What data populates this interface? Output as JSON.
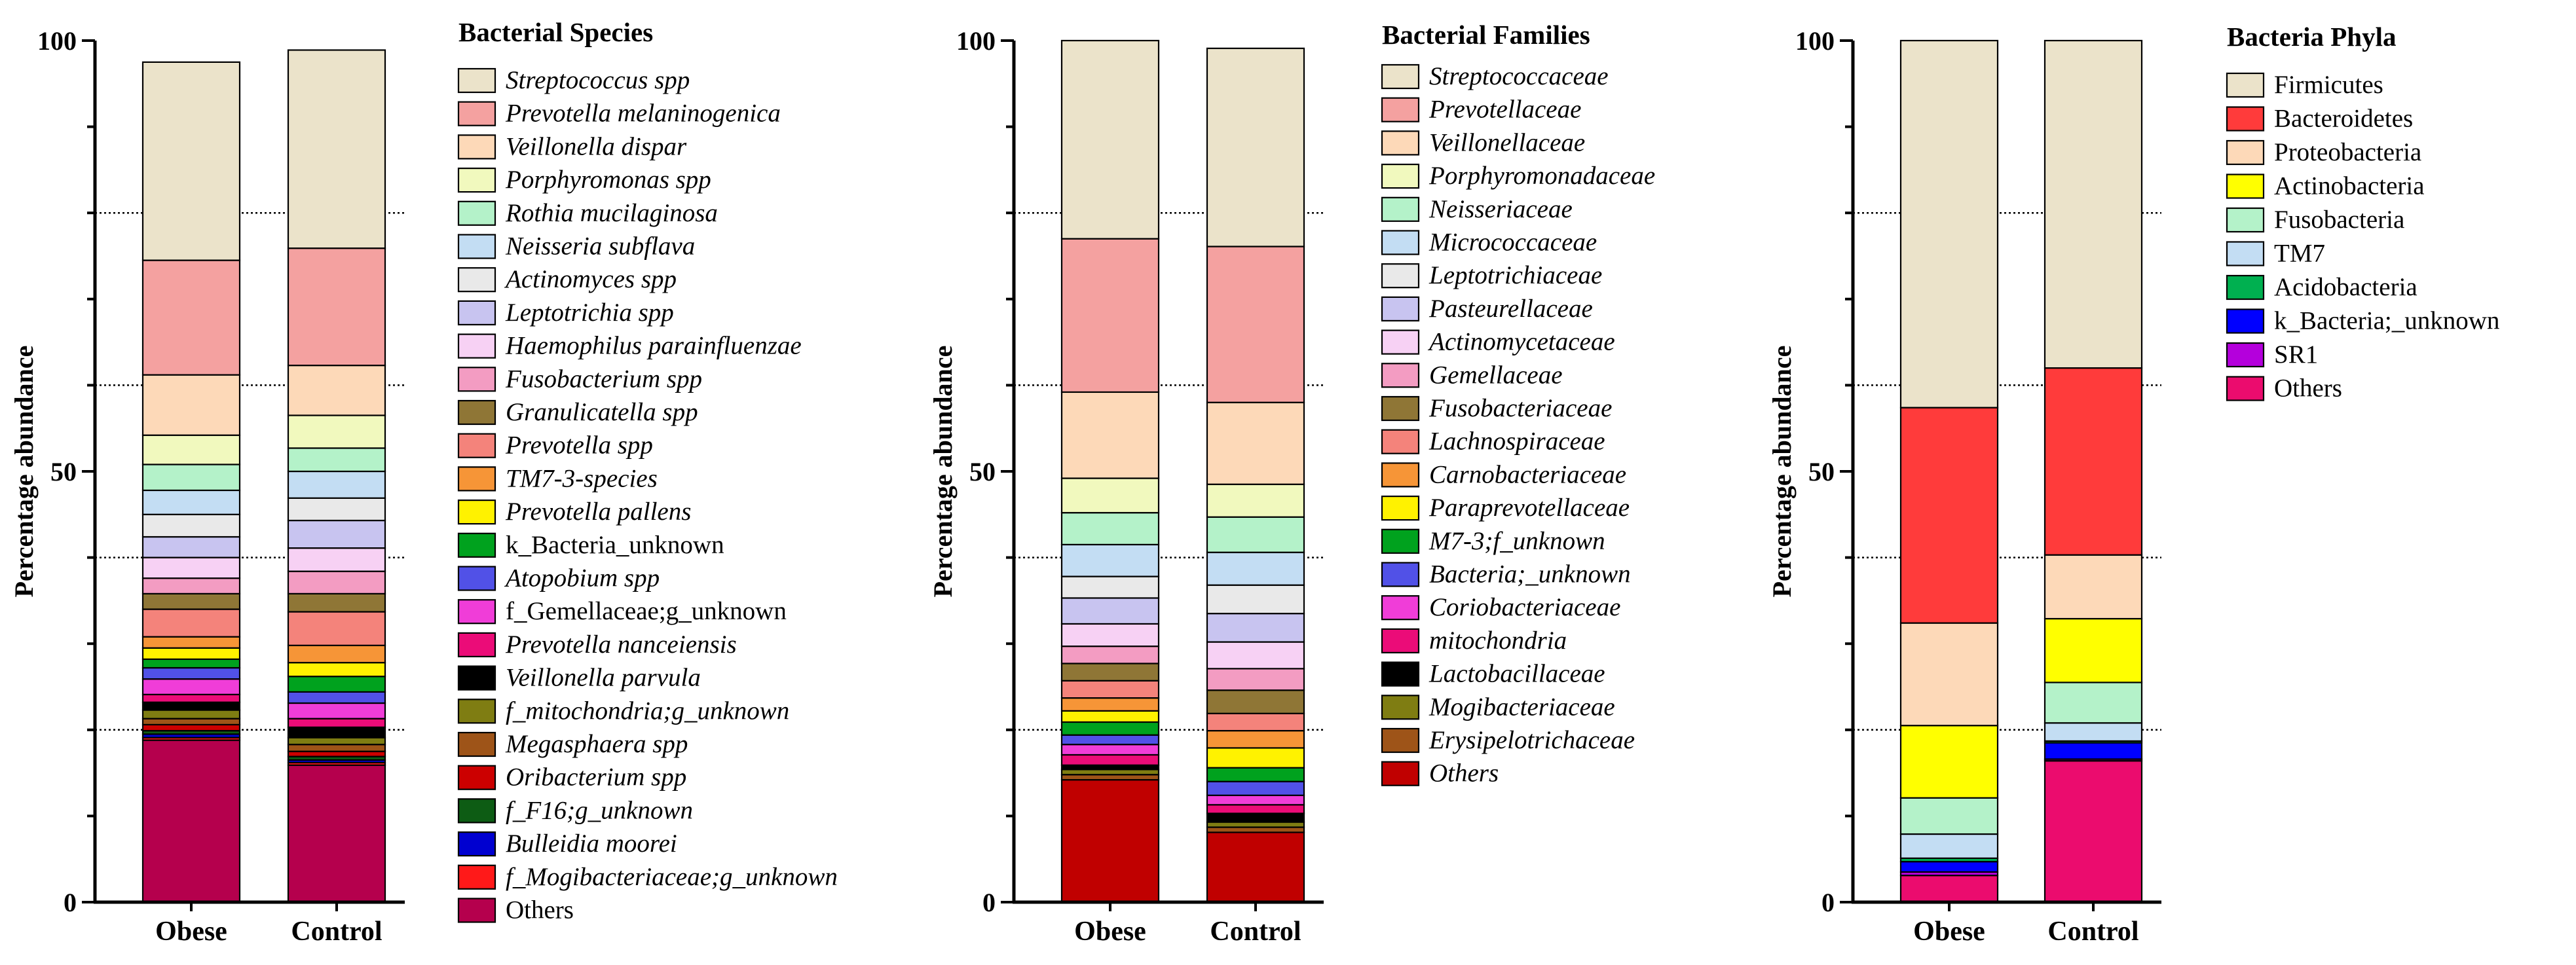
{
  "chart_data": [
    {
      "type": "bar",
      "stacked": true,
      "id": "species",
      "title": "Bacterial Species",
      "ylabel": "Percentage abundance",
      "xlabel": "",
      "ylim": [
        0,
        100
      ],
      "yticks": [
        0,
        50,
        100
      ],
      "grid_lines": [
        20,
        40,
        60,
        80
      ],
      "categories": [
        "Obese",
        "Control"
      ],
      "series": [
        {
          "name": "Streptococcus spp",
          "italic": true,
          "color": "#EBE3CA",
          "values": [
            23.0,
            23.0
          ]
        },
        {
          "name": "Prevotella melaninogenica",
          "italic": true,
          "color": "#F4A1A0",
          "values": [
            13.3,
            13.6
          ]
        },
        {
          "name": "Veillonella dispar",
          "italic": true,
          "color": "#FDD9B8",
          "values": [
            7.0,
            5.8
          ]
        },
        {
          "name": "Porphyromonas spp",
          "italic": true,
          "color": "#F1F9BE",
          "values": [
            3.4,
            3.8
          ]
        },
        {
          "name": "Rothia mucilaginosa",
          "italic": true,
          "color": "#B4F2C9",
          "values": [
            3.0,
            2.7
          ]
        },
        {
          "name": "Neisseria subflava",
          "italic": true,
          "color": "#C3DDF3",
          "values": [
            2.8,
            3.1
          ]
        },
        {
          "name": "Actinomyces spp",
          "italic": true,
          "color": "#E9E9E9",
          "values": [
            2.6,
            2.6
          ]
        },
        {
          "name": "Leptotrichia spp",
          "italic": true,
          "color": "#C8C4F0",
          "values": [
            2.4,
            3.2
          ]
        },
        {
          "name": "Haemophilus parainfluenzae",
          "italic": true,
          "color": "#F7D1F4",
          "values": [
            2.4,
            2.7
          ]
        },
        {
          "name": "Fusobacterium spp",
          "italic": true,
          "color": "#F39CC2",
          "values": [
            1.8,
            2.6
          ]
        },
        {
          "name": "Granulicatella spp",
          "italic": true,
          "color": "#8F7636",
          "values": [
            1.8,
            2.1
          ]
        },
        {
          "name": "Prevotella spp",
          "italic": true,
          "color": "#F4837B",
          "values": [
            3.2,
            3.9
          ]
        },
        {
          "name": "TM7-3-species",
          "italic": true,
          "color": "#F69537",
          "values": [
            1.3,
            2.0
          ]
        },
        {
          "name": "Prevotella pallens",
          "italic": true,
          "color": "#FFF200",
          "values": [
            1.3,
            1.6
          ]
        },
        {
          "name": "k_Bacteria_unknown",
          "italic": false,
          "color": "#00A21E",
          "values": [
            1.0,
            1.8
          ]
        },
        {
          "name": "Atopobium spp",
          "italic": true,
          "color": "#5151E7",
          "values": [
            1.3,
            1.3
          ]
        },
        {
          "name": "f_Gemellaceae;g_unknown",
          "italic": false,
          "color": "#F03DD8",
          "values": [
            1.8,
            1.8
          ]
        },
        {
          "name": "Prevotella nanceiensis",
          "italic": true,
          "color": "#EB0C78",
          "values": [
            0.9,
            1.0
          ]
        },
        {
          "name": "Veillonella parvula",
          "italic": true,
          "color": "#000000",
          "values": [
            0.9,
            1.2
          ]
        },
        {
          "name": "f_mitochondria;g_unknown",
          "italic": true,
          "color": "#7F7D12",
          "values": [
            1.0,
            0.8
          ]
        },
        {
          "name": "Megasphaera spp",
          "italic": true,
          "color": "#9E5418",
          "values": [
            0.7,
            0.8
          ]
        },
        {
          "name": "Oribacterium spp",
          "italic": true,
          "color": "#CC0000",
          "values": [
            0.7,
            0.6
          ]
        },
        {
          "name": "f_F16;g_unknown",
          "italic": true,
          "color": "#0D5C14",
          "values": [
            0.4,
            0.4
          ]
        },
        {
          "name": "Bulleidia moorei",
          "italic": true,
          "color": "#0000D0",
          "values": [
            0.4,
            0.3
          ]
        },
        {
          "name": "f_Mogibacteriaceae;g_unknown",
          "italic": true,
          "color": "#FF1919",
          "values": [
            0.3,
            0.3
          ]
        },
        {
          "name": "Others",
          "italic": false,
          "color": "#B5004D",
          "values": [
            18.8,
            15.9
          ]
        }
      ]
    },
    {
      "type": "bar",
      "stacked": true,
      "id": "families",
      "title": "Bacterial Families",
      "ylabel": "Percentage abundance",
      "xlabel": "",
      "ylim": [
        0,
        100
      ],
      "yticks": [
        0,
        50,
        100
      ],
      "grid_lines": [
        20,
        40,
        60,
        80
      ],
      "categories": [
        "Obese",
        "Control"
      ],
      "series": [
        {
          "name": "Streptococcaceae",
          "italic": true,
          "color": "#EBE3CA",
          "values": [
            23.0,
            23.0
          ]
        },
        {
          "name": "Prevotellaceae",
          "italic": true,
          "color": "#F4A1A0",
          "values": [
            17.8,
            18.1
          ]
        },
        {
          "name": "Veillonellaceae",
          "italic": true,
          "color": "#FDD9B8",
          "values": [
            10.0,
            9.5
          ]
        },
        {
          "name": "Porphyromonadaceae",
          "italic": true,
          "color": "#F1F9BE",
          "values": [
            4.0,
            3.8
          ]
        },
        {
          "name": "Neisseriaceae",
          "italic": true,
          "color": "#B4F2C9",
          "values": [
            3.7,
            4.1
          ]
        },
        {
          "name": "Micrococcaceae",
          "italic": true,
          "color": "#C3DDF3",
          "values": [
            3.7,
            3.8
          ]
        },
        {
          "name": "Leptotrichiaceae",
          "italic": true,
          "color": "#E9E9E9",
          "values": [
            2.5,
            3.3
          ]
        },
        {
          "name": "Pasteurellaceae",
          "italic": true,
          "color": "#C8C4F0",
          "values": [
            3.0,
            3.3
          ]
        },
        {
          "name": "Actinomycetaceae",
          "italic": true,
          "color": "#F7D1F4",
          "values": [
            2.6,
            3.1
          ]
        },
        {
          "name": "Gemellaceae",
          "italic": true,
          "color": "#F39CC2",
          "values": [
            2.0,
            2.5
          ]
        },
        {
          "name": "Fusobacteriaceae",
          "italic": true,
          "color": "#8F7636",
          "values": [
            2.0,
            2.7
          ]
        },
        {
          "name": "Lachnospiraceae",
          "italic": true,
          "color": "#F4837B",
          "values": [
            2.0,
            2.0
          ]
        },
        {
          "name": "Carnobacteriaceae",
          "italic": true,
          "color": "#F69537",
          "values": [
            1.5,
            2.0
          ]
        },
        {
          "name": "Paraprevotellaceae",
          "italic": true,
          "color": "#FFF200",
          "values": [
            1.3,
            2.3
          ]
        },
        {
          "name": "M7-3;f_unknown",
          "italic": true,
          "color": "#00A21E",
          "values": [
            1.5,
            1.6
          ]
        },
        {
          "name": "Bacteria;_unknown",
          "italic": true,
          "color": "#5151E7",
          "values": [
            1.1,
            1.6
          ]
        },
        {
          "name": "Coriobacteriaceae",
          "italic": true,
          "color": "#F03DD8",
          "values": [
            1.2,
            1.1
          ]
        },
        {
          "name": "mitochondria",
          "italic": true,
          "color": "#EB0C78",
          "values": [
            1.2,
            1.0
          ]
        },
        {
          "name": "Lactobacillaceae",
          "italic": true,
          "color": "#000000",
          "values": [
            0.5,
            1.0
          ]
        },
        {
          "name": "Mogibacteriaceae",
          "italic": true,
          "color": "#7F7D12",
          "values": [
            0.6,
            0.6
          ]
        },
        {
          "name": "Erysipelotrichaceae",
          "italic": true,
          "color": "#9E5418",
          "values": [
            0.6,
            0.6
          ]
        },
        {
          "name": "Others",
          "italic": true,
          "color": "#C00000",
          "values": [
            14.2,
            8.1
          ]
        }
      ]
    },
    {
      "type": "bar",
      "stacked": true,
      "id": "phyla",
      "title": "Bacteria Phyla",
      "ylabel": "Percentage abundance",
      "xlabel": "",
      "ylim": [
        0,
        100
      ],
      "yticks": [
        0,
        50,
        100
      ],
      "grid_lines": [
        20,
        40,
        60,
        80
      ],
      "categories": [
        "Obese",
        "Control"
      ],
      "series": [
        {
          "name": "Firmicutes",
          "italic": false,
          "color": "#EBE3CA",
          "values": [
            42.6,
            38.0
          ]
        },
        {
          "name": "Bacteroidetes",
          "italic": false,
          "color": "#FF3B3B",
          "values": [
            25.0,
            21.7
          ]
        },
        {
          "name": "Proteobacteria",
          "italic": false,
          "color": "#FDD9B8",
          "values": [
            11.9,
            7.4
          ]
        },
        {
          "name": "Actinobacteria",
          "italic": false,
          "color": "#FFFF00",
          "values": [
            8.4,
            7.4
          ]
        },
        {
          "name": "Fusobacteria",
          "italic": false,
          "color": "#B4F2C9",
          "values": [
            4.2,
            4.7
          ]
        },
        {
          "name": "TM7",
          "italic": false,
          "color": "#C3DDF3",
          "values": [
            2.8,
            2.1
          ]
        },
        {
          "name": "Acidobacteria",
          "italic": false,
          "color": "#00B050",
          "values": [
            0.4,
            0.2
          ]
        },
        {
          "name": "k_Bacteria;_unknown",
          "italic": false,
          "color": "#0000FF",
          "values": [
            1.2,
            1.9
          ]
        },
        {
          "name": "SR1",
          "italic": false,
          "color": "#B400DC",
          "values": [
            0.4,
            0.2
          ]
        },
        {
          "name": "Others",
          "italic": false,
          "color": "#EB0C6E",
          "values": [
            3.1,
            16.4
          ]
        }
      ]
    }
  ]
}
